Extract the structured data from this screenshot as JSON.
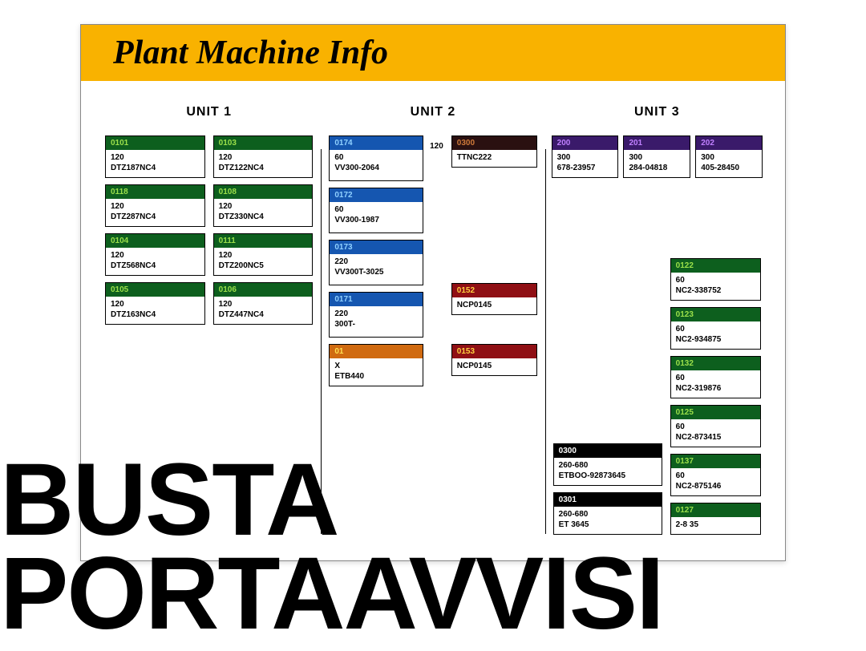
{
  "title": "Plant Machine Info",
  "colors": {
    "green": {
      "bg": "#0d5f1e",
      "hdr": "#9be04a"
    },
    "blue": {
      "bg": "#1556b0",
      "hdr": "#8fd0ff"
    },
    "brown": {
      "bg": "#2a1010",
      "hdr": "#d07a3a"
    },
    "purple": {
      "bg": "#3a1a6a",
      "hdr": "#c080ff"
    },
    "red": {
      "bg": "#8f0f14",
      "hdr": "#ffd040"
    },
    "black": {
      "bg": "#000000",
      "hdr": "#ffffff"
    },
    "orange": {
      "bg": "#d06a10",
      "hdr": "#ffe050"
    }
  },
  "units": [
    {
      "title": "UNIT 1",
      "columns": [
        [
          {
            "color": "green",
            "id": "0101",
            "l1": "120",
            "l2": "DTZ187NC4"
          },
          {
            "color": "green",
            "id": "0118",
            "l1": "120",
            "l2": "DTZ287NC4"
          },
          {
            "color": "green",
            "id": "0104",
            "l1": "120",
            "l2": "DTZ568NC4"
          },
          {
            "color": "green",
            "id": "0105",
            "l1": "120",
            "l2": "DTZ163NC4"
          }
        ],
        [
          {
            "color": "green",
            "id": "0103",
            "l1": "120",
            "l2": "DTZ122NC4"
          },
          {
            "color": "green",
            "id": "0108",
            "l1": "120",
            "l2": "DTZ330NC4"
          },
          {
            "color": "green",
            "id": "0111",
            "l1": "120",
            "l2": "DTZ200NC5"
          },
          {
            "color": "green",
            "id": "0106",
            "l1": "120",
            "l2": "DTZ447NC4"
          }
        ]
      ]
    }
  ],
  "unit2": {
    "title": "UNIT 2",
    "colA_note": "120",
    "colA": [
      {
        "color": "blue",
        "id": "0174",
        "l1": "60",
        "l2": "VV300-2064",
        "tall": true
      },
      {
        "color": "blue",
        "id": "0172",
        "l1": "60",
        "l2": "VV300-1987",
        "tall": true
      },
      {
        "color": "blue",
        "id": "0173",
        "l1": "220",
        "l2": "VV300T-3025",
        "tall": true
      },
      {
        "color": "blue",
        "id": "0171",
        "l1": "220",
        "l2": "300T-",
        "tall": true
      },
      {
        "color": "orange",
        "id": "01",
        "l1": "X",
        "l2": "ETB440"
      }
    ],
    "colB": [
      {
        "color": "brown",
        "id": "0300",
        "l1": "TTNC222",
        "l2": ""
      },
      {
        "spacer": "md"
      },
      {
        "spacer": "md"
      },
      {
        "color": "red",
        "id": "0152",
        "l1": "NCP0145",
        "l2": ""
      },
      {
        "spacer": "sm"
      },
      {
        "color": "red",
        "id": "0153",
        "l1": "NCP0145",
        "l2": ""
      }
    ]
  },
  "unit3": {
    "title": "UNIT 3",
    "topRow": [
      {
        "color": "purple",
        "id": "200",
        "l1": "300",
        "l2": "678-23957"
      },
      {
        "color": "purple",
        "id": "201",
        "l1": "300",
        "l2": "284-04818"
      },
      {
        "color": "purple",
        "id": "202",
        "l1": "300",
        "l2": "405-28450"
      }
    ],
    "colA": [
      {
        "color": "black",
        "id": "0300",
        "l1": "260-680",
        "l2": "ETBOO-92873645"
      },
      {
        "color": "black",
        "id": "0301",
        "l1": "260-680",
        "l2": "ET               3645"
      }
    ],
    "colB": [
      {
        "color": "green",
        "id": "0122",
        "l1": "60",
        "l2": "NC2-338752"
      },
      {
        "color": "green",
        "id": "0123",
        "l1": "60",
        "l2": "NC2-934875"
      },
      {
        "color": "green",
        "id": "0132",
        "l1": "60",
        "l2": "NC2-319876"
      },
      {
        "color": "green",
        "id": "0125",
        "l1": "60",
        "l2": "NC2-873415"
      },
      {
        "color": "green",
        "id": "0137",
        "l1": "60",
        "l2": "NC2-875146"
      },
      {
        "color": "green",
        "id": "0127",
        "l1": " ",
        "l2": "2-8      35"
      }
    ]
  },
  "overlay": "BUSTA\nPORTAAVVISI"
}
